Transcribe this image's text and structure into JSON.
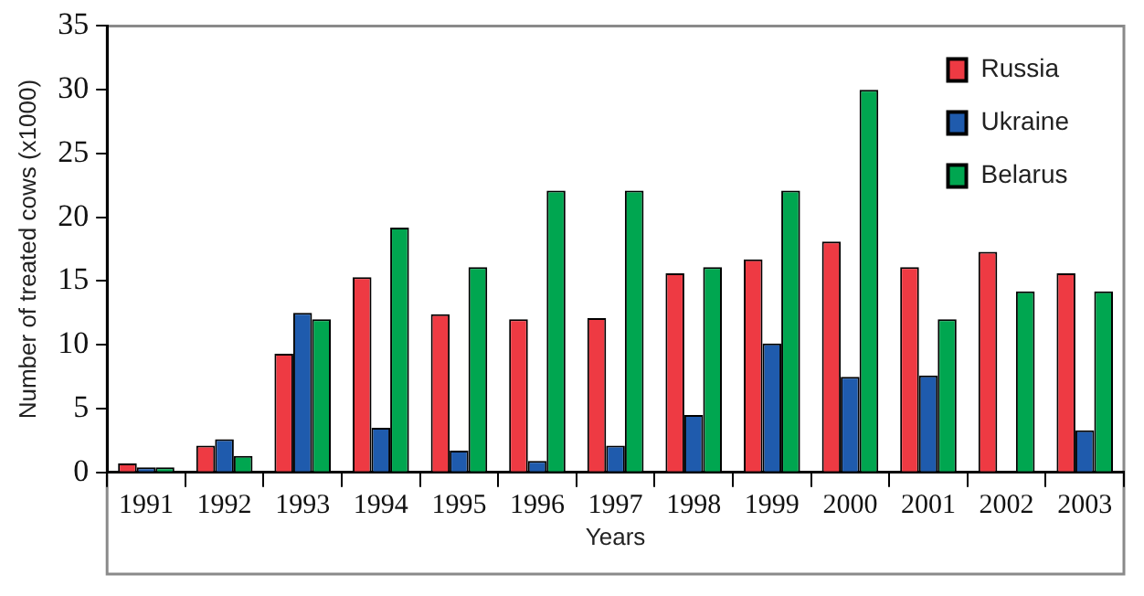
{
  "chart_data": {
    "type": "bar",
    "xlabel": "Years",
    "ylabel": "Number of treated cows (x1000)",
    "categories": [
      "1991",
      "1992",
      "1993",
      "1994",
      "1995",
      "1996",
      "1997",
      "1998",
      "1999",
      "2000",
      "2001",
      "2002",
      "2003"
    ],
    "series": [
      {
        "name": "Russia",
        "color": "#ee3a43",
        "values": [
          0.7,
          2.1,
          9.3,
          15.3,
          12.4,
          12.0,
          12.1,
          15.6,
          16.7,
          18.1,
          16.1,
          17.3,
          15.6
        ]
      },
      {
        "name": "Ukraine",
        "color": "#1f5bad",
        "values": [
          0.4,
          2.6,
          12.5,
          3.5,
          1.7,
          0.9,
          2.1,
          4.5,
          10.1,
          7.5,
          7.6,
          null,
          3.3
        ]
      },
      {
        "name": "Belarus",
        "color": "#00a650",
        "values": [
          0.4,
          1.3,
          12.0,
          19.2,
          16.1,
          22.1,
          22.1,
          16.1,
          22.1,
          30.0,
          12.0,
          14.2,
          14.2
        ]
      }
    ],
    "ylim": [
      0,
      35
    ],
    "yticks": [
      0,
      5,
      10,
      15,
      20,
      25,
      30,
      35
    ],
    "grid": false,
    "legend": "top right"
  }
}
